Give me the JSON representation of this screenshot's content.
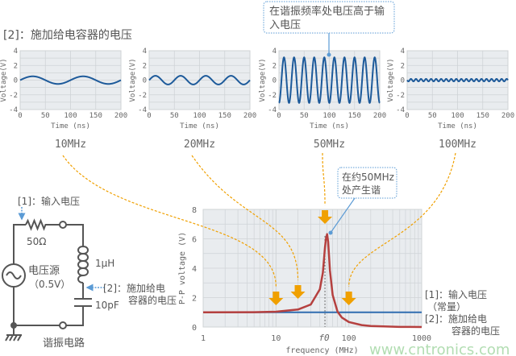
{
  "top_title": "[2]：施加给电容器的电压",
  "callout_top": [
    "在谐振频率处电压高于输",
    "入电压"
  ],
  "callout_peak": [
    "在约50MHz",
    "处产生谐"
  ],
  "small_plots": [
    {
      "label": "10MHz",
      "freq_mhz": 10,
      "amplitude_v": 0.52,
      "phase": "sin"
    },
    {
      "label": "20MHz",
      "freq_mhz": 20,
      "amplitude_v": 0.59,
      "phase": "sin"
    },
    {
      "label": "50MHz",
      "freq_mhz": 50,
      "amplitude_v": 3.1,
      "phase": "-cos"
    },
    {
      "label": "100MHz",
      "freq_mhz": 100,
      "amplitude_v": 0.17,
      "phase": "-sin"
    }
  ],
  "small_axes": {
    "ylabel": "Voltage(V)",
    "xlabel": "Time (ns)",
    "yticks": [
      "4",
      "2",
      "0",
      "-2",
      "-4"
    ],
    "xticks": [
      "0",
      "50",
      "100",
      "150",
      "200"
    ],
    "ylim": [
      -4,
      4
    ],
    "xlim": [
      0,
      200
    ]
  },
  "chart_data": {
    "type": "line",
    "xlabel": "frequency (MHz)",
    "ylabel": "P-P voltage (V)",
    "x_scale": "log",
    "xlim": [
      1,
      1000
    ],
    "ylim": [
      0,
      8
    ],
    "xticks": [
      "1",
      "10",
      "100",
      "1000"
    ],
    "yticks": [
      "0",
      "2",
      "4",
      "6",
      "8"
    ],
    "f0_label": "f0",
    "f0_mhz": 47,
    "grid": true,
    "series": [
      {
        "name": "[1]：输入电压（常量）",
        "color": "#2f6db0",
        "points": [
          [
            1,
            1.0
          ],
          [
            1000,
            1.0
          ]
        ]
      },
      {
        "name": "[2]：施加给电容器的电压",
        "color": "#b5403f",
        "points": [
          [
            1,
            1.0
          ],
          [
            5,
            1.01
          ],
          [
            10,
            1.04
          ],
          [
            20,
            1.19
          ],
          [
            30,
            1.53
          ],
          [
            40,
            2.57
          ],
          [
            44,
            3.7
          ],
          [
            47,
            5.4
          ],
          [
            48.5,
            6.0
          ],
          [
            50.3,
            6.32
          ],
          [
            52,
            5.8
          ],
          [
            55,
            3.85
          ],
          [
            60,
            2.17
          ],
          [
            70,
            1.04
          ],
          [
            80,
            0.65
          ],
          [
            100,
            0.34
          ],
          [
            150,
            0.13
          ],
          [
            200,
            0.07
          ],
          [
            500,
            0.01
          ],
          [
            1000,
            0.0
          ]
        ]
      }
    ],
    "arrows_mhz": [
      10,
      20,
      47,
      100
    ]
  },
  "legend": {
    "item1": [
      "[1]：输入电压",
      "（常量）"
    ],
    "item2": [
      "[2]：施加给电",
      "容器的电压"
    ]
  },
  "circuit": {
    "input_label": "[1]：输入电压",
    "resistor": "50Ω",
    "inductor": "1μH",
    "source": "电压源",
    "source_value": "（0.5V）",
    "cap_label": [
      "[2]：施加给电",
      "容器的电压"
    ],
    "capacitor": "10pF",
    "title": "谐振电路"
  },
  "watermark": "www.cntronics.com",
  "colors": {
    "orange": "#f0a000",
    "blue": "#2f6db0",
    "red": "#b5403f",
    "callout": "#5b9bd5",
    "plot_bg": "#e9ecef"
  }
}
